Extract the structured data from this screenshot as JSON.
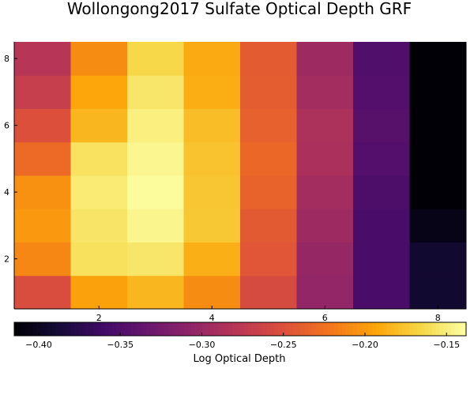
{
  "chart_data": {
    "type": "heatmap",
    "title": "Wollongong2017 Sulfate Optical Depth GRF",
    "x": [
      1,
      2,
      3,
      4,
      5,
      6,
      7,
      8
    ],
    "y": [
      1,
      2,
      3,
      4,
      5,
      6,
      7,
      8
    ],
    "xlim": [
      0.5,
      8.5
    ],
    "ylim": [
      0.5,
      8.5
    ],
    "x_ticks": [
      2,
      4,
      6,
      8
    ],
    "y_ticks": [
      2,
      4,
      6,
      8
    ],
    "z": [
      [
        -0.253,
        -0.196,
        -0.184,
        -0.208,
        -0.255,
        -0.305,
        -0.355,
        -0.392
      ],
      [
        -0.211,
        -0.159,
        -0.155,
        -0.188,
        -0.245,
        -0.302,
        -0.355,
        -0.392
      ],
      [
        -0.201,
        -0.156,
        -0.145,
        -0.174,
        -0.242,
        -0.297,
        -0.355,
        -0.405
      ],
      [
        -0.206,
        -0.152,
        -0.14,
        -0.175,
        -0.235,
        -0.293,
        -0.352,
        -0.414
      ],
      [
        -0.23,
        -0.158,
        -0.144,
        -0.177,
        -0.232,
        -0.288,
        -0.348,
        -0.414
      ],
      [
        -0.25,
        -0.184,
        -0.149,
        -0.18,
        -0.237,
        -0.287,
        -0.345,
        -0.414
      ],
      [
        -0.268,
        -0.193,
        -0.155,
        -0.189,
        -0.24,
        -0.293,
        -0.348,
        -0.414
      ],
      [
        -0.28,
        -0.208,
        -0.165,
        -0.19,
        -0.241,
        -0.297,
        -0.35,
        -0.414
      ]
    ],
    "colormap": "inferno",
    "colorbar": {
      "label": "Log Optical Depth",
      "range": [
        -0.415,
        -0.138
      ],
      "ticks": [
        -0.4,
        -0.35,
        -0.3,
        -0.25,
        -0.2,
        -0.15
      ],
      "tick_labels": [
        "−0.40",
        "−0.35",
        "−0.30",
        "−0.25",
        "−0.20",
        "−0.15"
      ],
      "placement": "bottom"
    },
    "grid": false,
    "legend": "none"
  }
}
